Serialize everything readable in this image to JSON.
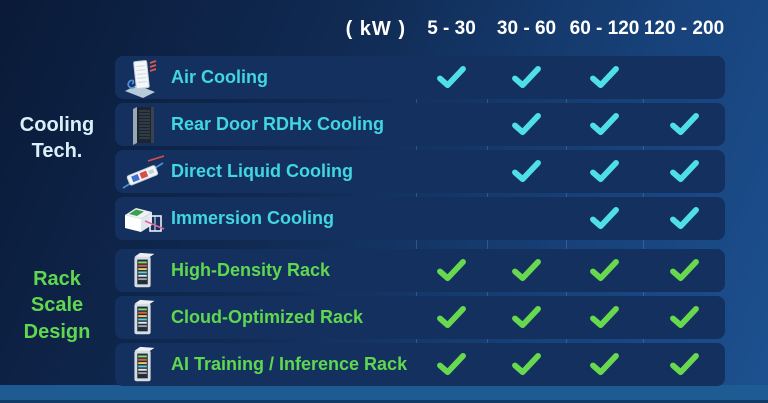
{
  "header": {
    "unit_label": "( kW )",
    "columns": [
      "5 - 30",
      "30 - 60",
      "60 - 120",
      "120 - 200"
    ]
  },
  "groups": [
    {
      "label": "Cooling Tech."
    },
    {
      "label": "Rack Scale Design"
    }
  ],
  "rows": [
    {
      "label": "Air Cooling",
      "icon": "air-cooling-icon",
      "group": "cooling",
      "checks": [
        true,
        true,
        true,
        false
      ]
    },
    {
      "label": "Rear Door RDHx Cooling",
      "icon": "rear-door-rack-icon",
      "group": "cooling",
      "checks": [
        false,
        true,
        true,
        true
      ]
    },
    {
      "label": "Direct Liquid Cooling",
      "icon": "direct-liquid-icon",
      "group": "cooling",
      "checks": [
        false,
        true,
        true,
        true
      ]
    },
    {
      "label": "Immersion Cooling",
      "icon": "immersion-tank-icon",
      "group": "cooling",
      "checks": [
        false,
        false,
        true,
        true
      ]
    },
    {
      "label": "High-Density Rack",
      "icon": "server-rack-icon",
      "group": "rack",
      "checks": [
        true,
        true,
        true,
        true
      ]
    },
    {
      "label": "Cloud-Optimized Rack",
      "icon": "server-rack-icon",
      "group": "rack",
      "checks": [
        true,
        true,
        true,
        true
      ]
    },
    {
      "label": "AI Training / Inference Rack",
      "icon": "server-rack-icon",
      "group": "rack",
      "checks": [
        true,
        true,
        true,
        true
      ]
    }
  ],
  "colors": {
    "background_dark": "#0a1a38",
    "background_light": "#1d5190",
    "row_background": "#14305f",
    "floor_strip": "#1e5b92",
    "header_text": "#ffffff",
    "cooling_label": "#41d6e2",
    "cooling_group_label": "#d8f1f8",
    "cooling_check": "#4fdfe8",
    "rack_label": "#5fd84f",
    "rack_check": "#68d94e"
  }
}
